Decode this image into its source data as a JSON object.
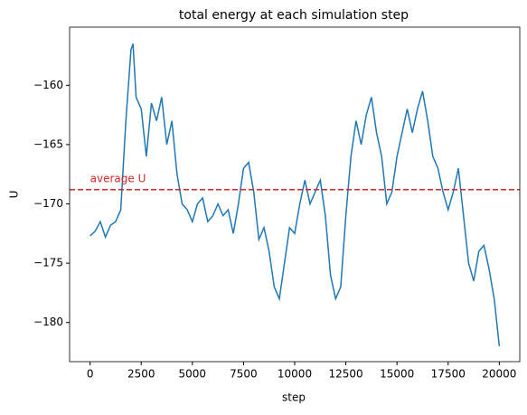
{
  "chart_data": {
    "type": "line",
    "title": "total energy at each simulation step",
    "x_label": "step",
    "y_label": "U",
    "x": [
      0,
      250,
      500,
      750,
      1000,
      1250,
      1500,
      1750,
      2000,
      2100,
      2250,
      2500,
      2750,
      3000,
      3250,
      3500,
      3750,
      4000,
      4250,
      4500,
      4750,
      5000,
      5250,
      5500,
      5750,
      6000,
      6250,
      6500,
      6750,
      7000,
      7250,
      7500,
      7750,
      8000,
      8250,
      8500,
      8750,
      9000,
      9250,
      9500,
      9750,
      10000,
      10250,
      10500,
      10750,
      11000,
      11250,
      11500,
      11750,
      12000,
      12250,
      12500,
      12750,
      13000,
      13250,
      13500,
      13750,
      14000,
      14250,
      14500,
      14750,
      15000,
      15250,
      15500,
      15750,
      16000,
      16250,
      16500,
      16750,
      17000,
      17250,
      17500,
      17750,
      18000,
      18250,
      18500,
      18750,
      19000,
      19250,
      19500,
      19750,
      20000
    ],
    "series": [
      {
        "name": "U",
        "color": "#1f77b4",
        "values": [
          -172.7,
          -172.3,
          -171.5,
          -172.8,
          -171.8,
          -171.5,
          -170.5,
          -163,
          -157,
          -156.5,
          -161,
          -162,
          -166,
          -161.5,
          -163,
          -161,
          -165,
          -163,
          -167.5,
          -170,
          -170.5,
          -171.5,
          -170,
          -169.5,
          -171.5,
          -171,
          -170,
          -171,
          -170.5,
          -172.5,
          -170,
          -167,
          -166.5,
          -169,
          -173,
          -172,
          -174,
          -177,
          -178,
          -175,
          -172,
          -172.5,
          -170,
          -168,
          -170,
          -169,
          -168,
          -171,
          -176,
          -178,
          -177,
          -171,
          -166,
          -163,
          -165,
          -162.5,
          -161,
          -164,
          -166,
          -170,
          -169,
          -166,
          -164,
          -162,
          -164,
          -162,
          -160.5,
          -163,
          -166,
          -167,
          -169,
          -170.5,
          -169,
          -167,
          -171,
          -175,
          -176.5,
          -174,
          -173.5,
          -175.5,
          -178,
          -182
        ]
      }
    ],
    "average": -168.8,
    "average_color": "#d62728",
    "average_label": "average U",
    "xlim": [
      -1000,
      21000
    ],
    "xticks": [
      0,
      2500,
      5000,
      7500,
      10000,
      12500,
      15000,
      17500,
      20000
    ],
    "ylim": [
      -183.3,
      -155.1
    ],
    "yticks": [
      {
        "value": -180,
        "label": "−180"
      },
      {
        "value": -175,
        "label": "−175"
      },
      {
        "value": -170,
        "label": "−170"
      },
      {
        "value": -165,
        "label": "−165"
      },
      {
        "value": -160,
        "label": "−160"
      }
    ],
    "grid": false
  }
}
